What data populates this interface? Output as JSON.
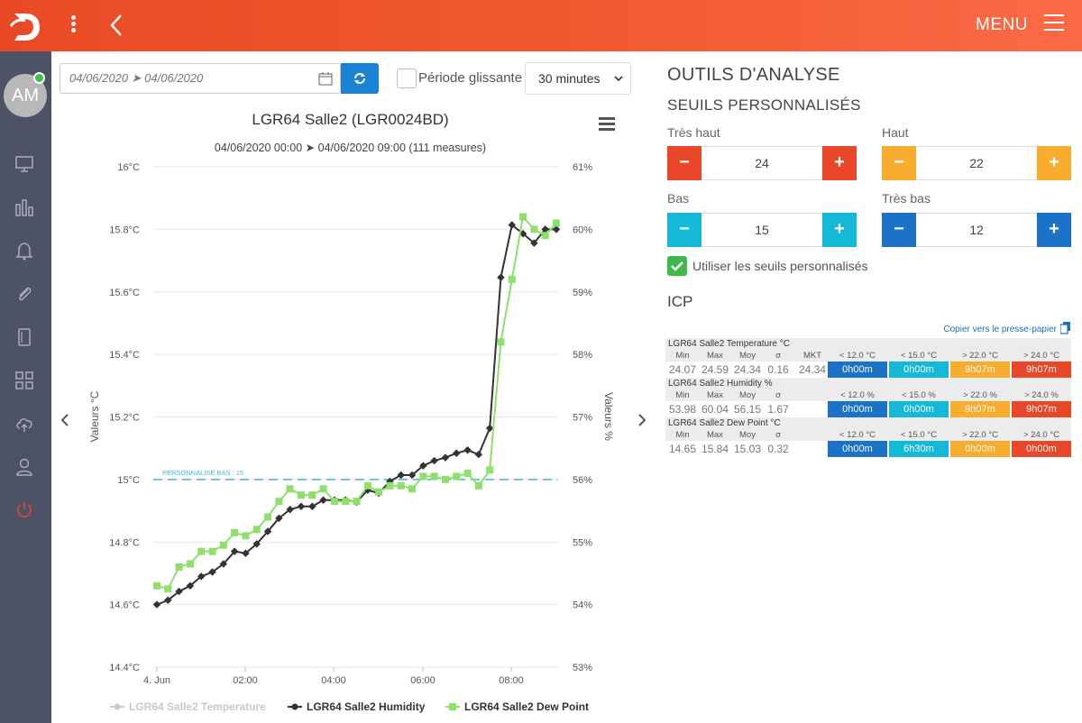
{
  "header": {
    "menu_label": "MENU",
    "avatar_initials": "AM",
    "accent": "#ef5330"
  },
  "filters": {
    "date_range": "04/06/2020 ➤ 04/06/2020",
    "sliding_label": "Période glissante",
    "interval": "30 minutes"
  },
  "chart": {
    "title": "LGR64 Salle2 (LGR0024BD)",
    "subtitle": "04/06/2020 00:00 ➤ 04/06/2020 09:00 (111 measures)",
    "threshold_label": "PERSONNALISÉ BAS : 15"
  },
  "chart_data": {
    "type": "line",
    "x_ticks": [
      "4. Jun",
      "02:00",
      "04:00",
      "06:00",
      "08:00"
    ],
    "y_left": {
      "label": "Valeurs °C",
      "ticks": [
        "16°C",
        "15.8°C",
        "15.6°C",
        "15.4°C",
        "15.2°C",
        "15°C",
        "14.8°C",
        "14.6°C",
        "14.4°C"
      ],
      "range": [
        14.4,
        16
      ]
    },
    "y_right": {
      "label": "Valeurs %",
      "ticks": [
        "61%",
        "60%",
        "59%",
        "58%",
        "57%",
        "56%",
        "55%",
        "54%",
        "53%"
      ],
      "range": [
        53,
        61
      ]
    },
    "threshold": 15,
    "x_range_hours": [
      0,
      9
    ],
    "series": [
      {
        "name": "LGR64 Salle2 Temperature",
        "color": "#cccccc",
        "visible": false,
        "values": []
      },
      {
        "name": "LGR64 Salle2 Humidity",
        "color": "#333333",
        "axis": "right",
        "x": [
          0,
          0.25,
          0.5,
          0.75,
          1,
          1.25,
          1.5,
          1.75,
          2,
          2.25,
          2.5,
          2.75,
          3,
          3.25,
          3.5,
          3.75,
          4,
          4.25,
          4.5,
          4.75,
          5,
          5.25,
          5.5,
          5.75,
          6,
          6.25,
          6.5,
          6.75,
          7,
          7.25,
          7.5,
          7.75,
          8,
          8.25,
          8.5,
          8.75,
          9
        ],
        "values": [
          54.0,
          54.07,
          54.21,
          54.3,
          54.45,
          54.52,
          54.65,
          54.85,
          54.82,
          54.97,
          55.17,
          55.38,
          55.52,
          55.57,
          55.57,
          55.67,
          55.67,
          55.67,
          55.64,
          55.83,
          55.78,
          55.97,
          56.07,
          56.07,
          56.22,
          56.3,
          56.35,
          56.42,
          56.47,
          56.4,
          56.82,
          59.23,
          60.07,
          59.93,
          59.78,
          60.0,
          60.0
        ]
      },
      {
        "name": "LGR64 Salle2 Dew Point",
        "color": "#8ee06a",
        "axis": "left",
        "x": [
          0,
          0.25,
          0.5,
          0.75,
          1,
          1.25,
          1.5,
          1.75,
          2,
          2.25,
          2.5,
          2.75,
          3,
          3.25,
          3.5,
          3.75,
          4,
          4.25,
          4.5,
          4.75,
          5,
          5.25,
          5.5,
          5.75,
          6,
          6.25,
          6.5,
          6.75,
          7,
          7.25,
          7.5,
          7.75,
          8,
          8.25,
          8.5,
          8.75,
          9
        ],
        "values": [
          14.66,
          14.65,
          14.72,
          14.73,
          14.77,
          14.77,
          14.79,
          14.83,
          14.82,
          14.84,
          14.88,
          14.93,
          14.97,
          14.95,
          14.95,
          14.97,
          14.93,
          14.93,
          14.93,
          14.98,
          14.96,
          14.98,
          14.98,
          14.97,
          15.01,
          15.01,
          15.0,
          15.01,
          15.02,
          14.98,
          15.03,
          15.44,
          15.64,
          15.84,
          15.8,
          15.78,
          15.82
        ]
      }
    ],
    "legend_position": "bottom",
    "grid": true
  },
  "analysis": {
    "title": "OUTILS D'ANALYSE",
    "thresholds_title": "SEUILS PERSONNALISÉS",
    "thresholds": [
      {
        "label": "Très haut",
        "value": "24",
        "color": "#e8472a"
      },
      {
        "label": "Haut",
        "value": "22",
        "color": "#f8ad2f"
      },
      {
        "label": "Bas",
        "value": "15",
        "color": "#13b9d6"
      },
      {
        "label": "Très bas",
        "value": "12",
        "color": "#1a73c6"
      }
    ],
    "use_label": "Utiliser les seuils personnalisés",
    "icp_title": "ICP",
    "copy_label": "Copier vers le presse-papier"
  },
  "icp": [
    {
      "title": "LGR64 Salle2 Temperature °C",
      "headers": [
        "Min",
        "Max",
        "Moy",
        "σ",
        "MKT"
      ],
      "values": [
        "24.07",
        "24.59",
        "24.34",
        "0.16",
        "24.34"
      ],
      "bands": [
        "< 12.0 °C",
        "< 15.0 °C",
        "> 22.0 °C",
        "> 24.0 °C"
      ],
      "durations": [
        "0h00m",
        "0h00m",
        "9h07m",
        "9h07m"
      ]
    },
    {
      "title": "LGR64 Salle2 Humidity %",
      "headers": [
        "Min",
        "Max",
        "Moy",
        "σ"
      ],
      "values": [
        "53.98",
        "60.04",
        "56.15",
        "1.67"
      ],
      "bands": [
        "< 12.0 %",
        "< 15.0 %",
        "> 22.0 %",
        "> 24.0 %"
      ],
      "durations": [
        "0h00m",
        "0h00m",
        "9h07m",
        "9h07m"
      ]
    },
    {
      "title": "LGR64 Salle2 Dew Point °C",
      "headers": [
        "Min",
        "Max",
        "Moy",
        "σ"
      ],
      "values": [
        "14.65",
        "15.84",
        "15.03",
        "0.32"
      ],
      "bands": [
        "< 12.0 °C",
        "< 15.0 °C",
        "> 22.0 °C",
        "> 24.0 °C"
      ],
      "durations": [
        "0h00m",
        "6h30m",
        "0h00m",
        "0h00m"
      ]
    }
  ]
}
